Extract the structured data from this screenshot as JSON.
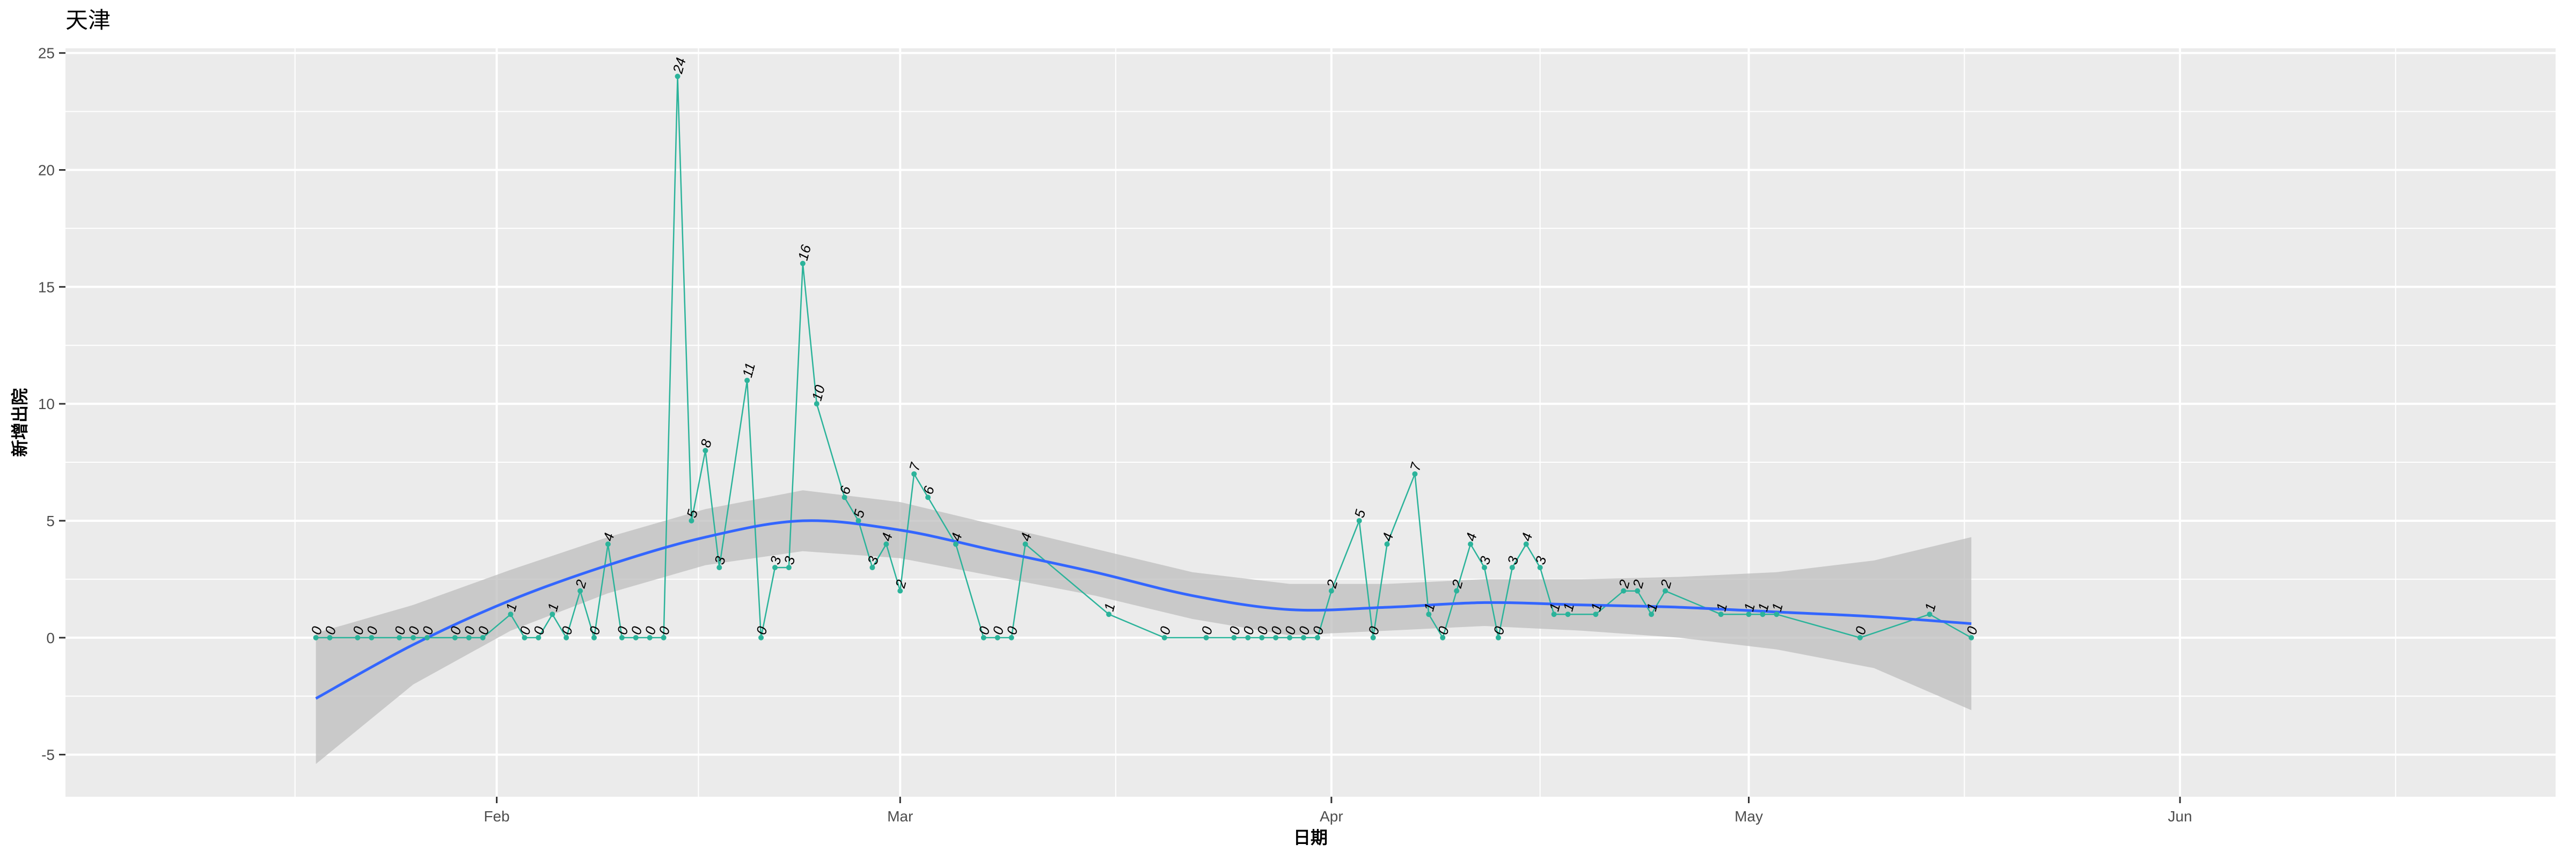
{
  "chart_data": {
    "type": "line",
    "title": "天津",
    "xlabel": "日期",
    "ylabel": "新增出院",
    "x_axis": {
      "type": "date",
      "range": [
        "2020-01-01",
        "2020-06-28"
      ]
    },
    "ylim": [
      -6.8,
      25.2
    ],
    "y_ticks": [
      -5,
      0,
      5,
      10,
      15,
      20,
      25
    ],
    "x_ticks": [
      {
        "date": "2020-02-01",
        "label": "Feb"
      },
      {
        "date": "2020-03-01",
        "label": "Mar"
      },
      {
        "date": "2020-04-01",
        "label": "Apr"
      },
      {
        "date": "2020-05-01",
        "label": "May"
      },
      {
        "date": "2020-06-01",
        "label": "Jun"
      }
    ],
    "grid": true,
    "colors": {
      "panel": "#ebebeb",
      "grid": "#ffffff",
      "series": "#2bb39a",
      "smooth": "#3366ff",
      "ribbon": "#bdbdbd"
    },
    "series": [
      {
        "points": [
          {
            "x": "2020-01-19",
            "y": 0
          },
          {
            "x": "2020-01-20",
            "y": 0
          },
          {
            "x": "2020-01-22",
            "y": 0
          },
          {
            "x": "2020-01-23",
            "y": 0
          },
          {
            "x": "2020-01-25",
            "y": 0
          },
          {
            "x": "2020-01-26",
            "y": 0
          },
          {
            "x": "2020-01-27",
            "y": 0
          },
          {
            "x": "2020-01-29",
            "y": 0
          },
          {
            "x": "2020-01-30",
            "y": 0
          },
          {
            "x": "2020-01-31",
            "y": 0
          },
          {
            "x": "2020-02-02",
            "y": 1
          },
          {
            "x": "2020-02-03",
            "y": 0
          },
          {
            "x": "2020-02-04",
            "y": 0
          },
          {
            "x": "2020-02-05",
            "y": 1
          },
          {
            "x": "2020-02-06",
            "y": 0
          },
          {
            "x": "2020-02-07",
            "y": 2
          },
          {
            "x": "2020-02-08",
            "y": 0
          },
          {
            "x": "2020-02-09",
            "y": 4
          },
          {
            "x": "2020-02-10",
            "y": 0
          },
          {
            "x": "2020-02-11",
            "y": 0
          },
          {
            "x": "2020-02-12",
            "y": 0
          },
          {
            "x": "2020-02-13",
            "y": 0
          },
          {
            "x": "2020-02-14",
            "y": 24
          },
          {
            "x": "2020-02-15",
            "y": 5
          },
          {
            "x": "2020-02-16",
            "y": 8
          },
          {
            "x": "2020-02-17",
            "y": 3
          },
          {
            "x": "2020-02-19",
            "y": 11
          },
          {
            "x": "2020-02-20",
            "y": 0
          },
          {
            "x": "2020-02-21",
            "y": 3
          },
          {
            "x": "2020-02-22",
            "y": 3
          },
          {
            "x": "2020-02-23",
            "y": 16
          },
          {
            "x": "2020-02-24",
            "y": 10
          },
          {
            "x": "2020-02-26",
            "y": 6
          },
          {
            "x": "2020-02-27",
            "y": 5
          },
          {
            "x": "2020-02-28",
            "y": 3
          },
          {
            "x": "2020-02-29",
            "y": 4
          },
          {
            "x": "2020-03-01",
            "y": 2
          },
          {
            "x": "2020-03-02",
            "y": 7
          },
          {
            "x": "2020-03-03",
            "y": 6
          },
          {
            "x": "2020-03-05",
            "y": 4
          },
          {
            "x": "2020-03-07",
            "y": 0
          },
          {
            "x": "2020-03-08",
            "y": 0
          },
          {
            "x": "2020-03-09",
            "y": 0
          },
          {
            "x": "2020-03-10",
            "y": 4
          },
          {
            "x": "2020-03-16",
            "y": 1
          },
          {
            "x": "2020-03-20",
            "y": 0
          },
          {
            "x": "2020-03-23",
            "y": 0
          },
          {
            "x": "2020-03-25",
            "y": 0
          },
          {
            "x": "2020-03-26",
            "y": 0
          },
          {
            "x": "2020-03-27",
            "y": 0
          },
          {
            "x": "2020-03-28",
            "y": 0
          },
          {
            "x": "2020-03-29",
            "y": 0
          },
          {
            "x": "2020-03-30",
            "y": 0
          },
          {
            "x": "2020-03-31",
            "y": 0
          },
          {
            "x": "2020-04-01",
            "y": 2
          },
          {
            "x": "2020-04-03",
            "y": 5
          },
          {
            "x": "2020-04-04",
            "y": 0
          },
          {
            "x": "2020-04-05",
            "y": 4
          },
          {
            "x": "2020-04-07",
            "y": 7
          },
          {
            "x": "2020-04-08",
            "y": 1
          },
          {
            "x": "2020-04-09",
            "y": 0
          },
          {
            "x": "2020-04-10",
            "y": 2
          },
          {
            "x": "2020-04-11",
            "y": 4
          },
          {
            "x": "2020-04-12",
            "y": 3
          },
          {
            "x": "2020-04-13",
            "y": 0
          },
          {
            "x": "2020-04-14",
            "y": 3
          },
          {
            "x": "2020-04-15",
            "y": 4
          },
          {
            "x": "2020-04-16",
            "y": 3
          },
          {
            "x": "2020-04-17",
            "y": 1
          },
          {
            "x": "2020-04-18",
            "y": 1
          },
          {
            "x": "2020-04-20",
            "y": 1
          },
          {
            "x": "2020-04-22",
            "y": 2
          },
          {
            "x": "2020-04-23",
            "y": 2
          },
          {
            "x": "2020-04-24",
            "y": 1
          },
          {
            "x": "2020-04-25",
            "y": 2
          },
          {
            "x": "2020-04-29",
            "y": 1
          },
          {
            "x": "2020-05-01",
            "y": 1
          },
          {
            "x": "2020-05-02",
            "y": 1
          },
          {
            "x": "2020-05-03",
            "y": 1
          },
          {
            "x": "2020-05-09",
            "y": 0
          },
          {
            "x": "2020-05-14",
            "y": 1
          },
          {
            "x": "2020-05-17",
            "y": 0
          }
        ]
      }
    ],
    "smooth": [
      {
        "x": "2020-01-19",
        "y": -2.6,
        "lo": -5.4,
        "hi": 0.2
      },
      {
        "x": "2020-01-26",
        "y": -0.3,
        "lo": -2.0,
        "hi": 1.4
      },
      {
        "x": "2020-02-02",
        "y": 1.6,
        "lo": 0.3,
        "hi": 2.9
      },
      {
        "x": "2020-02-09",
        "y": 3.1,
        "lo": 1.9,
        "hi": 4.3
      },
      {
        "x": "2020-02-16",
        "y": 4.3,
        "lo": 3.1,
        "hi": 5.5
      },
      {
        "x": "2020-02-23",
        "y": 5.0,
        "lo": 3.7,
        "hi": 6.3
      },
      {
        "x": "2020-03-01",
        "y": 4.6,
        "lo": 3.4,
        "hi": 5.8
      },
      {
        "x": "2020-03-08",
        "y": 3.7,
        "lo": 2.6,
        "hi": 4.8
      },
      {
        "x": "2020-03-15",
        "y": 2.8,
        "lo": 1.8,
        "hi": 3.8
      },
      {
        "x": "2020-03-22",
        "y": 1.8,
        "lo": 0.8,
        "hi": 2.8
      },
      {
        "x": "2020-03-29",
        "y": 1.2,
        "lo": 0.1,
        "hi": 2.3
      },
      {
        "x": "2020-04-05",
        "y": 1.3,
        "lo": 0.3,
        "hi": 2.3
      },
      {
        "x": "2020-04-12",
        "y": 1.5,
        "lo": 0.5,
        "hi": 2.5
      },
      {
        "x": "2020-04-19",
        "y": 1.4,
        "lo": 0.3,
        "hi": 2.5
      },
      {
        "x": "2020-04-26",
        "y": 1.3,
        "lo": 0.0,
        "hi": 2.6
      },
      {
        "x": "2020-05-03",
        "y": 1.1,
        "lo": -0.5,
        "hi": 2.8
      },
      {
        "x": "2020-05-10",
        "y": 0.9,
        "lo": -1.3,
        "hi": 3.3
      },
      {
        "x": "2020-05-17",
        "y": 0.6,
        "lo": -3.1,
        "hi": 4.3
      }
    ]
  }
}
